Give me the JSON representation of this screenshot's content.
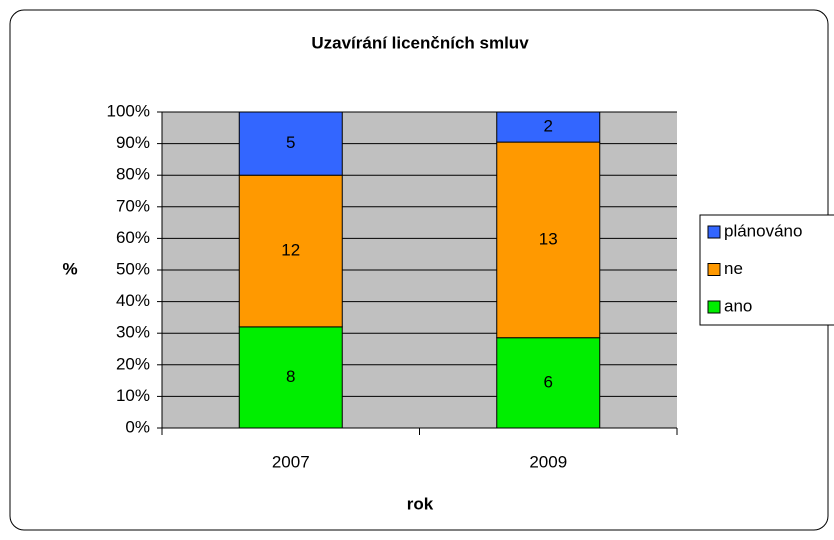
{
  "chart_data": {
    "type": "bar",
    "stacking": "percent",
    "title": "Uzavírání licenčních smluv",
    "xlabel": "rok",
    "ylabel": "%",
    "categories": [
      "2007",
      "2009"
    ],
    "series": [
      {
        "name": "ano",
        "color": "#00ee00",
        "values": [
          8,
          6
        ]
      },
      {
        "name": "ne",
        "color": "#ff9900",
        "values": [
          12,
          13
        ]
      },
      {
        "name": "plánováno",
        "color": "#3366ff",
        "values": [
          5,
          2
        ]
      }
    ],
    "ylim": [
      0,
      100
    ],
    "yticks": [
      {
        "value": 0,
        "label": "0%"
      },
      {
        "value": 10,
        "label": "10%"
      },
      {
        "value": 20,
        "label": "20%"
      },
      {
        "value": 30,
        "label": "30%"
      },
      {
        "value": 40,
        "label": "40%"
      },
      {
        "value": 50,
        "label": "50%"
      },
      {
        "value": 60,
        "label": "60%"
      },
      {
        "value": 70,
        "label": "70%"
      },
      {
        "value": 80,
        "label": "80%"
      },
      {
        "value": 90,
        "label": "90%"
      },
      {
        "value": 100,
        "label": "100%"
      }
    ],
    "grid": true,
    "legend": "right",
    "plot_background": "#c0c0c0"
  }
}
